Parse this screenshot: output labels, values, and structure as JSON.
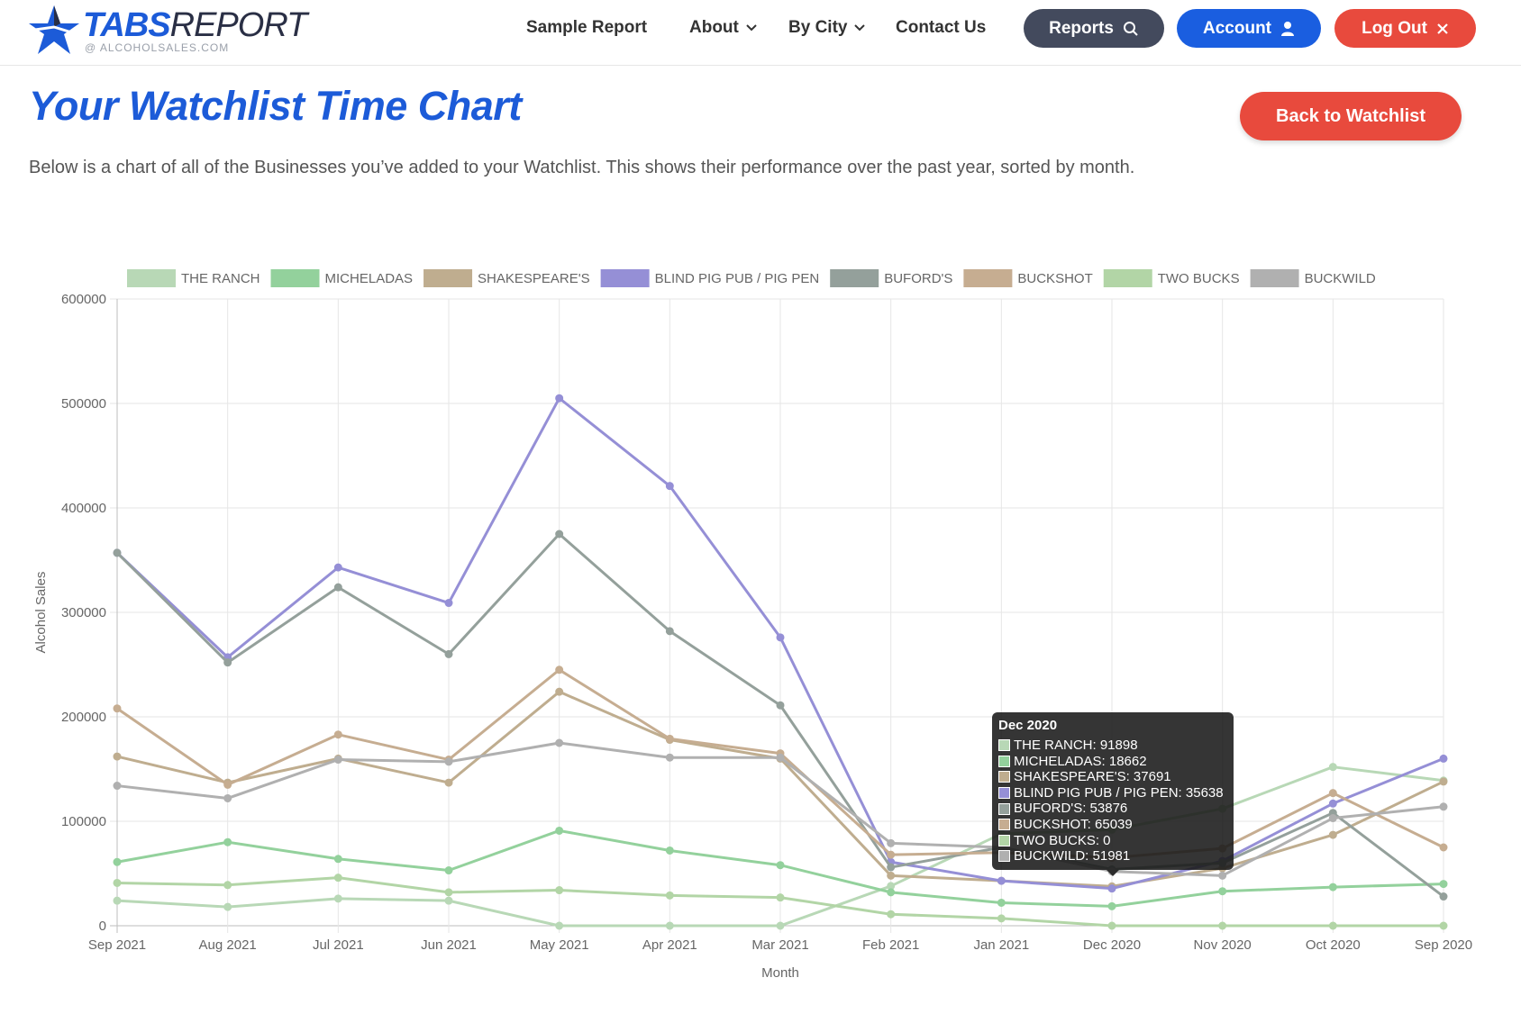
{
  "header": {
    "logo_bold": "TABS",
    "logo_rest": "REPORT",
    "logo_sub": "@ ALCOHOLSALES.COM",
    "nav": {
      "sample_report": "Sample Report",
      "about": "About",
      "by_city": "By City",
      "contact": "Contact Us"
    },
    "buttons": {
      "reports": "Reports",
      "account": "Account",
      "logout": "Log Out"
    }
  },
  "page": {
    "title": "Your Watchlist Time Chart",
    "back_button": "Back to Watchlist",
    "description": "Below is a chart of all of the Businesses you’ve added to your Watchlist. This shows their performance over the past year, sorted by month."
  },
  "icons": {
    "logo": "star-icon",
    "reports": "search-icon",
    "account": "user-icon",
    "logout": "close-icon",
    "dropdown": "chevron-down-icon"
  },
  "colors": {
    "brand_blue": "#1c5bd8",
    "button_blue": "#1a5ee0",
    "button_red": "#e84a3d",
    "button_dark": "#434a5d"
  },
  "chart_data": {
    "type": "line",
    "xlabel": "Month",
    "ylabel": "Alcohol Sales",
    "ylim": [
      0,
      600000
    ],
    "yticks": [
      0,
      100000,
      200000,
      300000,
      400000,
      500000,
      600000
    ],
    "grid": true,
    "legend_position": "top",
    "categories": [
      "Sep 2021",
      "Aug 2021",
      "Jul 2021",
      "Jun 2021",
      "May 2021",
      "Apr 2021",
      "Mar 2021",
      "Feb 2021",
      "Jan 2021",
      "Dec 2020",
      "Nov 2020",
      "Oct 2020",
      "Sep 2020"
    ],
    "series": [
      {
        "name": "THE RANCH",
        "color": "#b8d8b6",
        "values": [
          24000,
          18000,
          26000,
          24000,
          0,
          0,
          0,
          38000,
          88000,
          91898,
          112000,
          152000,
          139000
        ]
      },
      {
        "name": "MICHELADAS",
        "color": "#93d19c",
        "values": [
          61000,
          80000,
          64000,
          53000,
          91000,
          72000,
          58000,
          32000,
          22000,
          18662,
          33000,
          37000,
          40000
        ]
      },
      {
        "name": "SHAKESPEARE'S",
        "color": "#bfad8f",
        "values": [
          162000,
          137000,
          160000,
          137000,
          224000,
          178000,
          160000,
          48000,
          43000,
          37691,
          55000,
          87000,
          138000
        ]
      },
      {
        "name": "BLIND PIG PUB / PIG PEN",
        "color": "#958fd6",
        "values": [
          357000,
          257000,
          343000,
          309000,
          505000,
          421000,
          276000,
          61000,
          43000,
          35638,
          62000,
          117000,
          160000
        ]
      },
      {
        "name": "BUFORD'S",
        "color": "#94a09b",
        "values": [
          357000,
          252000,
          324000,
          260000,
          375000,
          282000,
          211000,
          56000,
          75000,
          53876,
          60000,
          108000,
          28000
        ]
      },
      {
        "name": "BUCKSHOT",
        "color": "#c6ad91",
        "values": [
          208000,
          135000,
          183000,
          159000,
          245000,
          179000,
          165000,
          68000,
          70000,
          65039,
          74000,
          127000,
          75000
        ]
      },
      {
        "name": "TWO BUCKS",
        "color": "#b2d5a6",
        "values": [
          41000,
          39000,
          46000,
          32000,
          34000,
          29000,
          27000,
          11000,
          7000,
          0,
          0,
          0,
          0
        ]
      },
      {
        "name": "BUCKWILD",
        "color": "#b0b0b0",
        "values": [
          134000,
          122000,
          159000,
          157000,
          175000,
          161000,
          161000,
          79000,
          75000,
          51981,
          48000,
          103000,
          114000
        ]
      }
    ],
    "tooltip": {
      "title": "Dec 2020",
      "category_index": 9,
      "rows": [
        "THE RANCH: 91898",
        "MICHELADAS: 18662",
        "SHAKESPEARE'S: 37691",
        "BLIND PIG PUB / PIG PEN: 35638",
        "BUFORD'S: 53876",
        "BUCKSHOT: 65039",
        "TWO BUCKS: 0",
        "BUCKWILD: 51981"
      ]
    }
  }
}
